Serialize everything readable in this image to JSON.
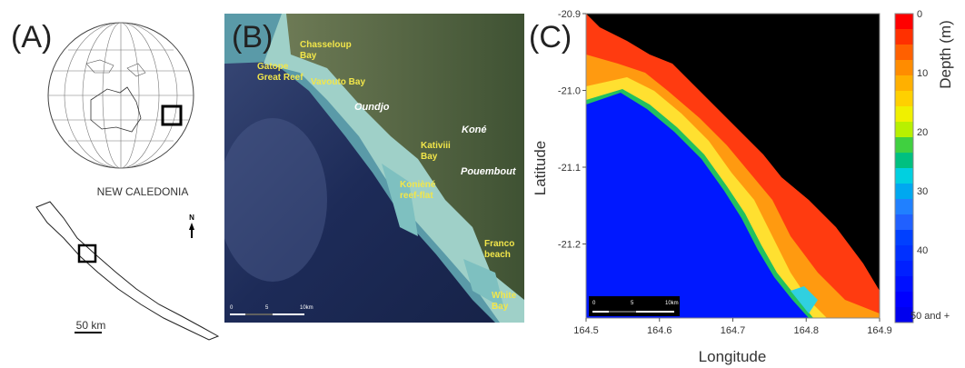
{
  "panels": [
    {
      "label": "(A)",
      "caption": "NEW CALEDONIA",
      "north": "N",
      "scale": "50 km"
    },
    {
      "label": "(B)",
      "places": [
        {
          "lines": [
            "Chasseloup",
            "Bay"
          ]
        },
        {
          "lines": [
            "Gatope",
            "Great Reef"
          ]
        },
        {
          "lines": [
            "Vavouto Bay"
          ]
        },
        {
          "lines": [
            "Oundjo"
          ]
        },
        {
          "lines": [
            "Koné"
          ]
        },
        {
          "lines": [
            "Kativiii",
            "Bay"
          ]
        },
        {
          "lines": [
            "Pouembout"
          ]
        },
        {
          "lines": [
            "Konièné",
            "reef-flat"
          ]
        },
        {
          "lines": [
            "Franco",
            "beach"
          ]
        },
        {
          "lines": [
            "White",
            "Bay"
          ]
        }
      ],
      "scale": [
        "0",
        "5",
        "10km"
      ]
    },
    {
      "label": "(C)",
      "xlabel": "Longitude",
      "ylabel": "Latitude",
      "xticks": [
        "164.5",
        "164.6",
        "164.7",
        "164.8",
        "164.9"
      ],
      "yticks": [
        "-20.9",
        "-21.0",
        "-21.1",
        "-21.2"
      ],
      "colorbar_title": "Depth (m)",
      "colorbar_ticks": [
        "0",
        "10",
        "20",
        "30",
        "40",
        "50 and +"
      ],
      "scale": [
        "0",
        "5",
        "10km"
      ]
    }
  ]
}
